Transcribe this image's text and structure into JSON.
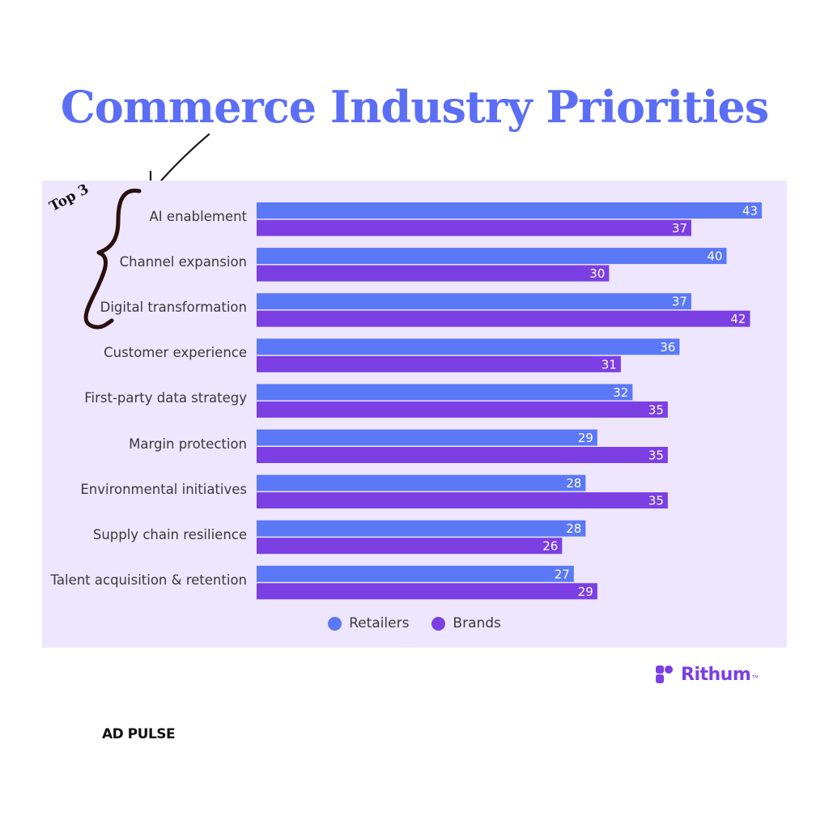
{
  "title": "Commerce Industry Priorities",
  "annotation": "Top 3",
  "colors": {
    "title": "#5b6ef5",
    "panel_bg": "#ede6fe",
    "retailers": "#5b78f6",
    "brands": "#7b3fe4",
    "annotation_ink": "#2a0f0f",
    "arrow_ink": "#1a1a1a"
  },
  "logo": {
    "text": "Rithum",
    "tm": "TM",
    "icon": "rithum-logo-icon"
  },
  "footer_brand": "AD PULSE",
  "chart_data": {
    "type": "bar",
    "orientation": "horizontal",
    "categories": [
      "AI enablement",
      "Channel expansion",
      "Digital transformation",
      "Customer experience",
      "First-party data strategy",
      "Margin protection",
      "Environmental initiatives",
      "Supply chain resilience",
      "Talent acquisition & retention"
    ],
    "series": [
      {
        "name": "Retailers",
        "values": [
          43,
          40,
          37,
          36,
          32,
          29,
          28,
          28,
          27
        ]
      },
      {
        "name": "Brands",
        "values": [
          37,
          30,
          42,
          31,
          35,
          35,
          35,
          26,
          29
        ]
      }
    ],
    "xlim": [
      0,
      43
    ],
    "grid": false,
    "data_labels": true,
    "legend": "bottom-center"
  }
}
